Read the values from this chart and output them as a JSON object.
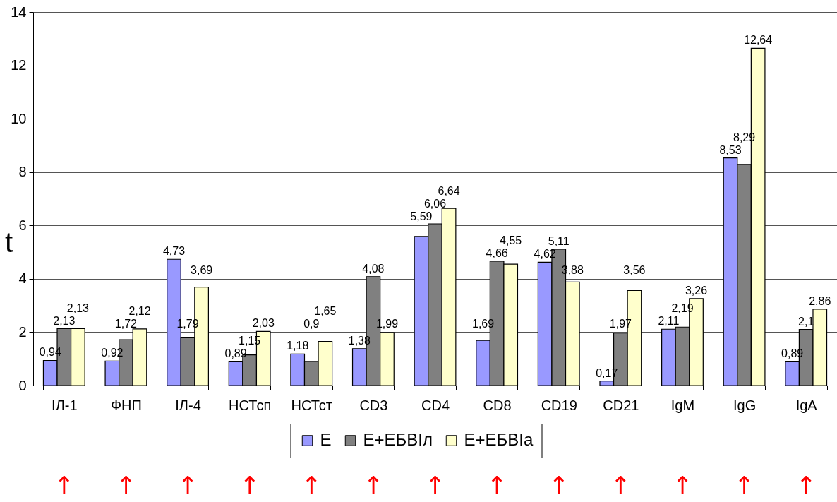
{
  "chart_data": {
    "type": "bar",
    "ylabel": "t",
    "categories": [
      "ІЛ-1",
      "ФНП",
      "ІЛ-4",
      "НСТсп",
      "НСТст",
      "CD3",
      "CD4",
      "CD8",
      "CD19",
      "CD21",
      "IgM",
      "IgG",
      "IgA"
    ],
    "series": [
      {
        "name": "Е",
        "color": "#9999ff",
        "values": [
          0.94,
          0.92,
          4.73,
          0.89,
          1.18,
          1.38,
          5.59,
          1.69,
          4.62,
          0.17,
          2.11,
          8.53,
          0.89
        ],
        "value_labels": [
          "0,94",
          "0,92",
          "4,73",
          "0,89",
          "1,18",
          "1,38",
          "5,59",
          "1,69",
          "4,62",
          "0,17",
          "2,11",
          "8,53",
          "0,89"
        ]
      },
      {
        "name": "Е+ЕБВІл",
        "color": "#808080",
        "values": [
          2.13,
          1.72,
          1.79,
          1.15,
          0.9,
          4.08,
          6.06,
          4.66,
          5.11,
          1.97,
          2.19,
          8.29,
          2.1
        ],
        "value_labels": [
          "2,13",
          "1,72",
          "1,79",
          "1,15",
          "0,9",
          "4,08",
          "6,06",
          "4,66",
          "5,11",
          "1,97",
          "2,19",
          "8,29",
          "2,1"
        ]
      },
      {
        "name": "Е+ЕБВІа",
        "color": "#ffffcc",
        "values": [
          2.13,
          2.12,
          3.69,
          2.03,
          1.65,
          1.99,
          6.64,
          4.55,
          3.88,
          3.56,
          3.26,
          12.64,
          2.86
        ],
        "value_labels": [
          "2,13",
          "2,12",
          "3,69",
          "2,03",
          "1,65",
          "1,99",
          "6,64",
          "4,55",
          "3,88",
          "3,56",
          "3,26",
          "12,64",
          "2,86"
        ]
      }
    ],
    "ylim": [
      0,
      14
    ],
    "yticks": [
      0,
      2,
      4,
      6,
      8,
      10,
      12,
      14
    ],
    "grid": "y",
    "legend": "bottom",
    "annotations": [
      "↑",
      "↑",
      "↑",
      "↑",
      "↑",
      "↑",
      "↑",
      "↑",
      "↑",
      "↑",
      "↑",
      "↑",
      "↑"
    ]
  }
}
